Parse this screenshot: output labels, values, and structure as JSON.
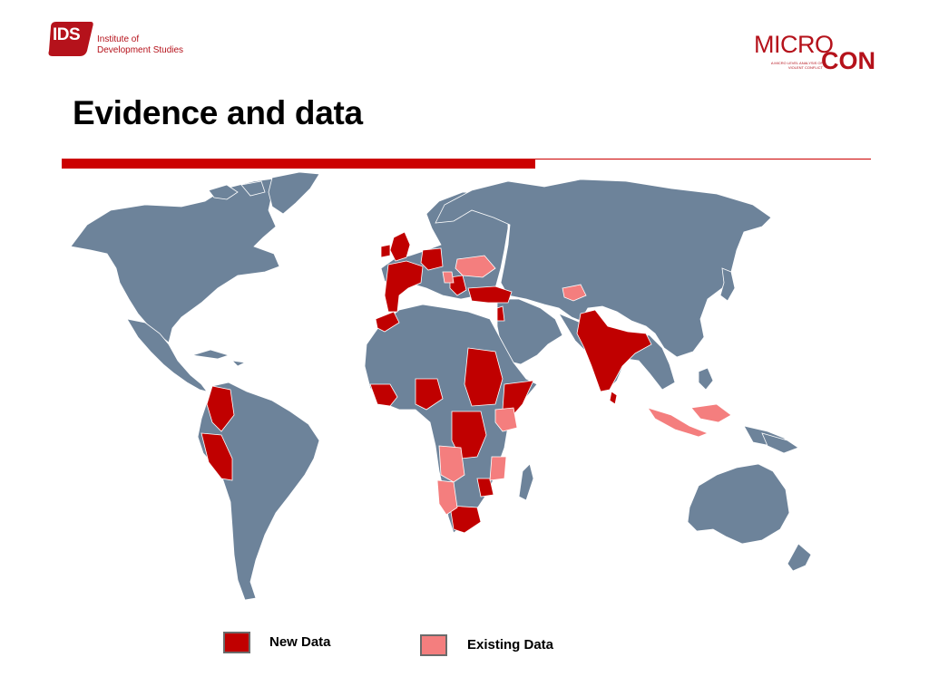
{
  "header": {
    "ids_badge": "IDS",
    "ids_name_line1": "Institute of",
    "ids_name_line2": "Development Studies",
    "micro_top": "MICRO",
    "micro_bottom": "CON",
    "micro_tagline": "A MICRO LEVEL ANALYSIS OF VIOLENT CONFLICT"
  },
  "title": "Evidence and data",
  "colors": {
    "accent": "#cc0000",
    "land": "#6d839a",
    "border": "#ffffff",
    "new_data": "#c00000",
    "existing_data": "#f47e7e"
  },
  "legend": {
    "new_label": "New Data",
    "existing_label": "Existing Data"
  }
}
